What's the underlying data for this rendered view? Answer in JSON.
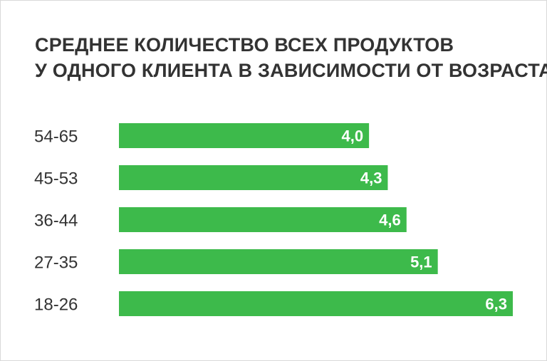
{
  "chart_data": {
    "type": "bar",
    "orientation": "horizontal",
    "title_lines": [
      "СРЕДНЕЕ КОЛИЧЕСТВО ВСЕХ ПРОДУКТОВ",
      "У ОДНОГО КЛИЕНТА В ЗАВИСИМОСТИ ОТ ВОЗРАСТА"
    ],
    "categories": [
      "54-65",
      "45-53",
      "36-44",
      "27-35",
      "18-26"
    ],
    "values": [
      4.0,
      4.3,
      4.6,
      5.1,
      6.3
    ],
    "value_labels": [
      "4,0",
      "4,3",
      "4,6",
      "5,1",
      "6,3"
    ],
    "xlim": [
      0,
      6.3
    ],
    "grid": false,
    "legend": "none",
    "bar_color": "#3dba4b",
    "value_label_color": "#ffffff",
    "text_color": "#333333"
  }
}
